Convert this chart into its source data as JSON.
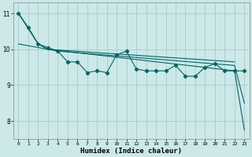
{
  "xlabel": "Humidex (Indice chaleur)",
  "background_color": "#cce8e8",
  "grid_color": "#aacccc",
  "line_color": "#006666",
  "xlim": [
    -0.5,
    23.5
  ],
  "ylim": [
    7.5,
    11.3
  ],
  "yticks": [
    8,
    9,
    10,
    11
  ],
  "xticks": [
    0,
    1,
    2,
    3,
    4,
    5,
    6,
    7,
    8,
    9,
    10,
    11,
    12,
    13,
    14,
    15,
    16,
    17,
    18,
    19,
    20,
    21,
    22,
    23
  ],
  "line1_x": [
    0,
    1,
    2,
    3,
    4,
    5,
    6,
    7,
    8,
    9,
    10,
    11,
    12,
    13,
    14,
    15,
    16,
    17,
    18,
    19,
    20,
    21,
    22,
    23
  ],
  "line1_y": [
    11.0,
    10.6,
    10.15,
    10.05,
    9.95,
    9.65,
    9.65,
    9.35,
    9.4,
    9.35,
    9.85,
    9.95,
    9.45,
    9.4,
    9.4,
    9.4,
    9.55,
    9.25,
    9.25,
    9.5,
    9.6,
    9.4,
    9.4,
    9.4
  ],
  "line2_x": [
    0,
    1,
    2,
    3,
    22,
    23
  ],
  "line2_y": [
    11.0,
    10.6,
    10.15,
    10.0,
    9.4,
    7.75
  ],
  "line3_x": [
    0,
    2,
    3,
    4,
    22,
    23
  ],
  "line3_y": [
    11.0,
    10.15,
    10.0,
    9.95,
    9.55,
    8.5
  ],
  "line4_x": [
    0,
    2,
    3,
    22
  ],
  "line4_y": [
    10.15,
    10.05,
    10.0,
    9.65
  ]
}
